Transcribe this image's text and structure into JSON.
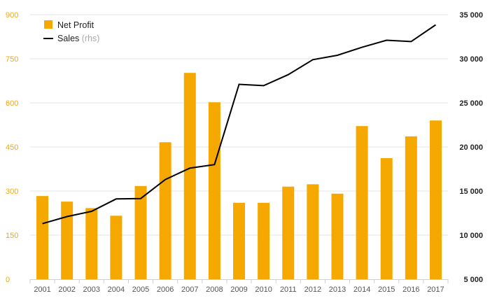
{
  "chart_data": {
    "type": "bar",
    "title": "",
    "xlabel": "",
    "ylabel": "",
    "categories": [
      "2001",
      "2002",
      "2003",
      "2004",
      "2005",
      "2006",
      "2007",
      "2008",
      "2009",
      "2010",
      "2011",
      "2012",
      "2013",
      "2014",
      "2015",
      "2016",
      "2017"
    ],
    "series": [
      {
        "name": "Net Profit",
        "type": "bar",
        "axis": "left",
        "color": "#f5a800",
        "values": [
          283,
          264,
          242,
          216,
          317,
          466,
          702,
          602,
          260,
          260,
          315,
          323,
          291,
          521,
          412,
          486,
          540
        ]
      },
      {
        "name": "Sales",
        "name_suffix": "(rhs)",
        "type": "line",
        "axis": "right",
        "color": "#000000",
        "values": [
          11300,
          12100,
          12700,
          14100,
          14150,
          16300,
          17600,
          18000,
          27100,
          26950,
          28200,
          29900,
          30400,
          31300,
          32100,
          31950,
          33850
        ]
      }
    ],
    "y_left": {
      "lim": [
        0,
        900
      ],
      "ticks": [
        "0",
        "150",
        "300",
        "450",
        "600",
        "750",
        "900"
      ],
      "color": "#f5a800"
    },
    "y_right": {
      "lim": [
        5000,
        35000
      ],
      "ticks": [
        "5 000",
        "10 000",
        "15 000",
        "20 000",
        "25 000",
        "30 000",
        "35 000"
      ],
      "color": "#222222"
    },
    "grid": true,
    "legend_position": "top-left"
  }
}
